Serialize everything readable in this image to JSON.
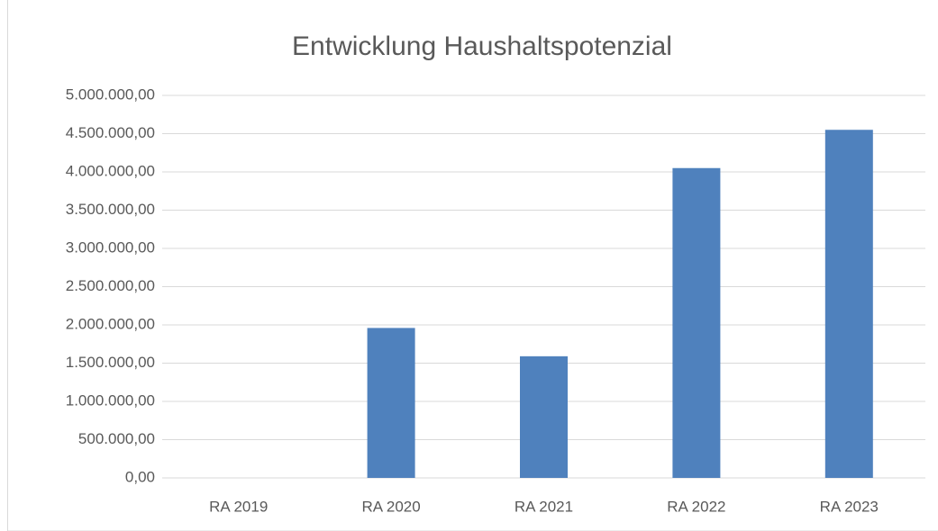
{
  "chart_data": {
    "type": "bar",
    "title": "Entwicklung Haushaltspotenzial",
    "categories": [
      "RA 2019",
      "RA 2020",
      "RA 2021",
      "RA 2022",
      "RA 2023"
    ],
    "values": [
      0,
      1960000,
      1590000,
      4050000,
      4550000
    ],
    "color": "#4f81bd",
    "ylim": [
      0,
      5000000
    ],
    "yticks": [
      {
        "value": 0,
        "label": "0,00"
      },
      {
        "value": 500000,
        "label": "500.000,00"
      },
      {
        "value": 1000000,
        "label": "1.000.000,00"
      },
      {
        "value": 1500000,
        "label": "1.500.000,00"
      },
      {
        "value": 2000000,
        "label": "2.000.000,00"
      },
      {
        "value": 2500000,
        "label": "2.500.000,00"
      },
      {
        "value": 3000000,
        "label": "3.000.000,00"
      },
      {
        "value": 3500000,
        "label": "3.500.000,00"
      },
      {
        "value": 4000000,
        "label": "4.000.000,00"
      },
      {
        "value": 4500000,
        "label": "4.500.000,00"
      },
      {
        "value": 5000000,
        "label": "5.000.000,00"
      }
    ],
    "grid": true
  }
}
